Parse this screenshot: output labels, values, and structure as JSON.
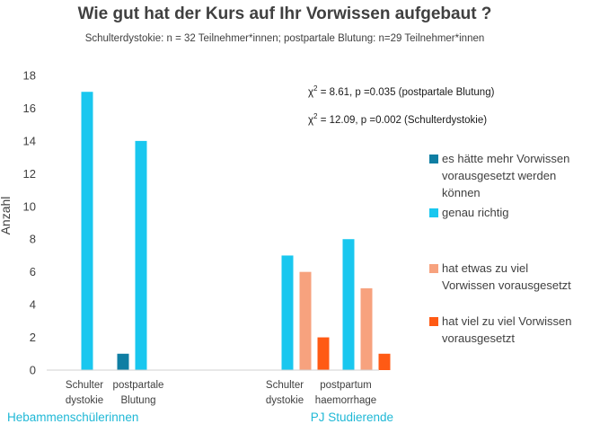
{
  "chart_data": {
    "type": "bar",
    "title": "Wie gut hat der Kurs auf Ihr Vorwissen aufgebaut ?",
    "subtitle": "Schulterdystokie: n = 32 Teilnehmer*innen; postpartale Blutung: n=29 Teilnehmer*innen",
    "ylabel": "Anzahl",
    "xlabel": "",
    "ylim": [
      0,
      18
    ],
    "yticks": [
      0,
      2,
      4,
      6,
      8,
      10,
      12,
      14,
      16,
      18
    ],
    "grid": false,
    "legend_position": "right",
    "categories": [
      [
        "Schulter",
        "dystokie"
      ],
      [
        "postpartale",
        "Blutung"
      ],
      [
        "Schulter",
        "dystokie"
      ],
      [
        "postpartum",
        "haemorrhage"
      ]
    ],
    "groups": [
      {
        "label": "Hebammenschülerinnen",
        "categories": [
          0,
          1
        ]
      },
      {
        "label": "PJ Studierende",
        "categories": [
          2,
          3
        ]
      }
    ],
    "series": [
      {
        "name": "es hätte mehr Vorwissen vorausgesetzt werden können",
        "legend_lines": [
          "es hätte mehr Vorwissen",
          "vorausgesetzt werden",
          "können"
        ],
        "color": "#0f7ea3",
        "values": [
          0,
          1,
          0,
          0
        ]
      },
      {
        "name": "genau richtig",
        "legend_lines": [
          "genau richtig"
        ],
        "color": "#19c7ef",
        "values": [
          17,
          14,
          7,
          8
        ]
      },
      {
        "name": "hat etwas zu viel Vorwissen vorausgesetzt",
        "legend_lines": [
          "hat etwas zu viel",
          "Vorwissen vorausgesetzt"
        ],
        "color": "#f7a27e",
        "values": [
          0,
          0,
          6,
          5
        ]
      },
      {
        "name": "hat viel zu viel Vorwissen vorausgesetzt",
        "legend_lines": [
          "hat viel zu viel Vorwissen",
          "vorausgesetzt"
        ],
        "color": "#ff5a14",
        "values": [
          0,
          0,
          2,
          1
        ]
      }
    ],
    "annotations": [
      {
        "chi": "χ",
        "sup": "2",
        "text": " = 8.61,  p =0.035 (postpartale Blutung)"
      },
      {
        "chi": "χ",
        "sup": "2",
        "text": " = 12.09, p =0.002 (Schulterdystokie)"
      }
    ]
  }
}
